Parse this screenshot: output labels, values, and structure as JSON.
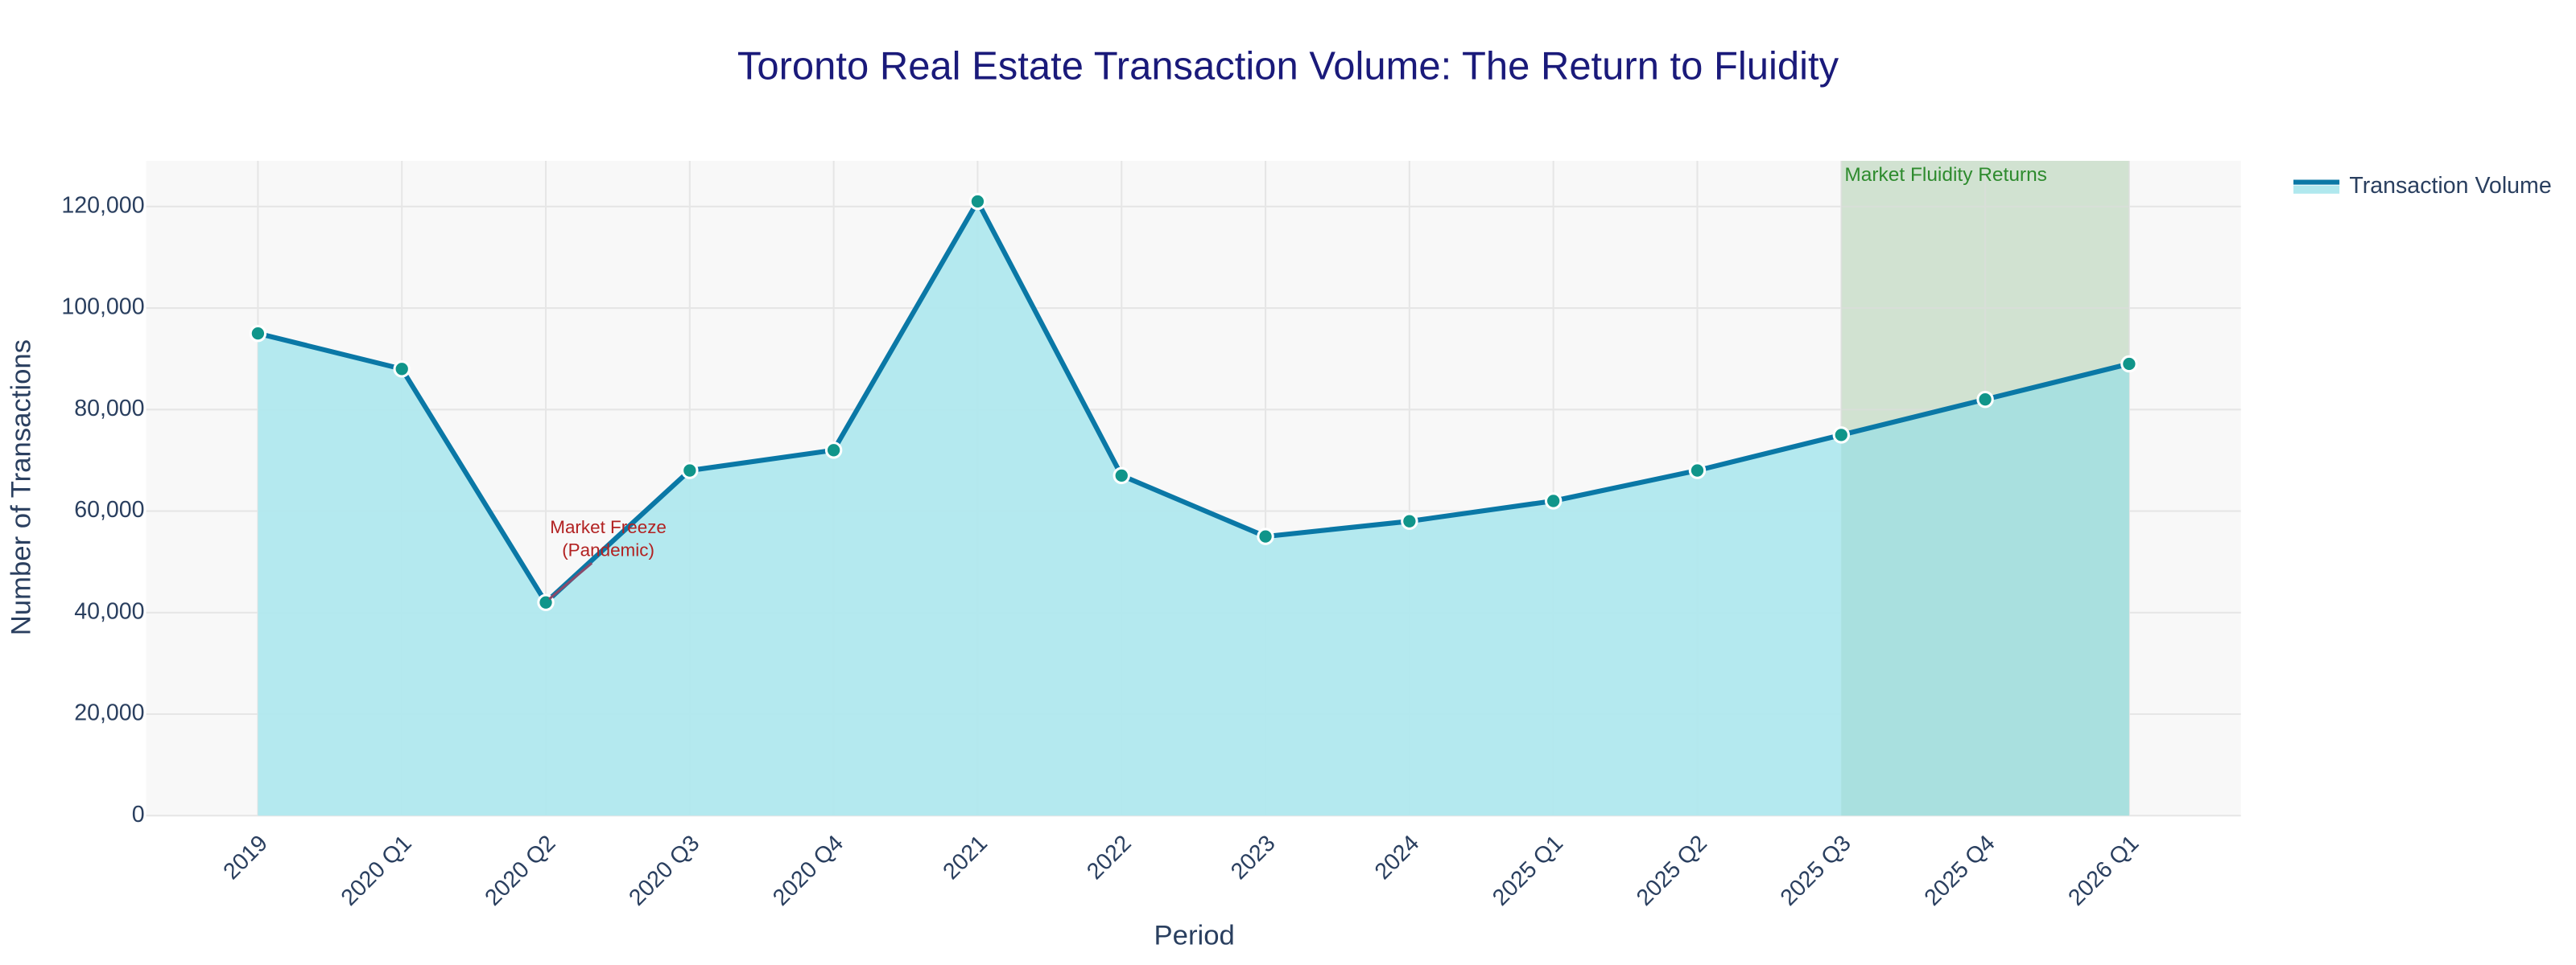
{
  "chart_data": {
    "type": "area-line",
    "title": "Toronto Real Estate Transaction Volume: The Return to Fluidity",
    "x_label": "Period",
    "y_label": "Number of Transactions",
    "categories": [
      "2019",
      "2020 Q1",
      "2020 Q2",
      "2020 Q3",
      "2020 Q4",
      "2021",
      "2022",
      "2023",
      "2024",
      "2025 Q1",
      "2025 Q2",
      "2025 Q3",
      "2025 Q4",
      "2026 Q1"
    ],
    "series": [
      {
        "name": "Transaction Volume",
        "color": "#0a78a6",
        "fill_color": "#b0e8ee",
        "marker_color": "#10958a",
        "values": [
          95000,
          88000,
          42000,
          68000,
          72000,
          121000,
          67000,
          55000,
          58000,
          62000,
          68000,
          75000,
          82000,
          89000
        ]
      }
    ],
    "ylim": [
      0,
      129000
    ],
    "yticks": [
      0,
      {
        "value": 20000,
        "label": "20,000"
      },
      {
        "value": 40000,
        "label": "40,000"
      },
      {
        "value": 60000,
        "label": "60,000"
      },
      {
        "value": 80000,
        "label": "80,000"
      },
      {
        "value": 100000,
        "label": "100,000"
      },
      {
        "value": 120000,
        "label": "120,000"
      }
    ],
    "grid": true,
    "legend": "outside-top-right",
    "annotation": {
      "text_lines": [
        "Market Freeze",
        "(Pandemic)"
      ],
      "category": "2020 Q2",
      "color": "#b22222"
    },
    "highlight": {
      "label": "Market Fluidity Returns",
      "from": "2025 Q3",
      "to": "2026 Q1",
      "color": "#2e8b2e"
    }
  }
}
